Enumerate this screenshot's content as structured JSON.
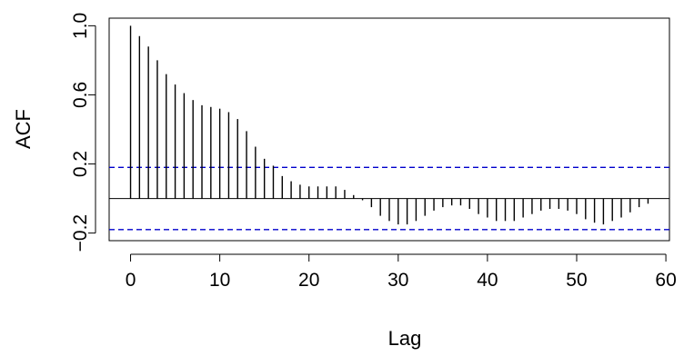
{
  "chart_data": {
    "type": "bar",
    "subtype": "acf-correlogram",
    "xlabel": "Lag",
    "ylabel": "ACF",
    "xlim": [
      -2.4,
      60.4
    ],
    "ylim": [
      -0.244,
      1.044
    ],
    "x_ticks": [
      0,
      10,
      20,
      30,
      40,
      50,
      60
    ],
    "x_tick_labels": [
      "0",
      "10",
      "20",
      "30",
      "40",
      "50",
      "60"
    ],
    "y_ticks": [
      -0.2,
      0.2,
      0.6,
      1.0
    ],
    "y_tick_labels": [
      "−0.2",
      "0.2",
      "0.6",
      "1.0"
    ],
    "confidence_bound": 0.18,
    "confidence_color": "#0000cc",
    "bar_color": "#000000",
    "lags": [
      0,
      1,
      2,
      3,
      4,
      5,
      6,
      7,
      8,
      9,
      10,
      11,
      12,
      13,
      14,
      15,
      16,
      17,
      18,
      19,
      20,
      21,
      22,
      23,
      24,
      25,
      26,
      27,
      28,
      29,
      30,
      31,
      32,
      33,
      34,
      35,
      36,
      37,
      38,
      39,
      40,
      41,
      42,
      43,
      44,
      45,
      46,
      47,
      48,
      49,
      50,
      51,
      52,
      53,
      54,
      55,
      56,
      57,
      58
    ],
    "acf": [
      1.0,
      0.94,
      0.88,
      0.8,
      0.72,
      0.66,
      0.61,
      0.57,
      0.54,
      0.53,
      0.52,
      0.5,
      0.46,
      0.39,
      0.3,
      0.23,
      0.19,
      0.13,
      0.1,
      0.08,
      0.07,
      0.07,
      0.07,
      0.07,
      0.05,
      0.02,
      -0.01,
      -0.05,
      -0.1,
      -0.13,
      -0.15,
      -0.15,
      -0.13,
      -0.1,
      -0.07,
      -0.05,
      -0.04,
      -0.04,
      -0.06,
      -0.09,
      -0.11,
      -0.13,
      -0.13,
      -0.13,
      -0.11,
      -0.09,
      -0.07,
      -0.06,
      -0.06,
      -0.07,
      -0.09,
      -0.12,
      -0.14,
      -0.15,
      -0.13,
      -0.11,
      -0.08,
      -0.05,
      -0.03
    ],
    "grid": false,
    "legend": "none"
  }
}
